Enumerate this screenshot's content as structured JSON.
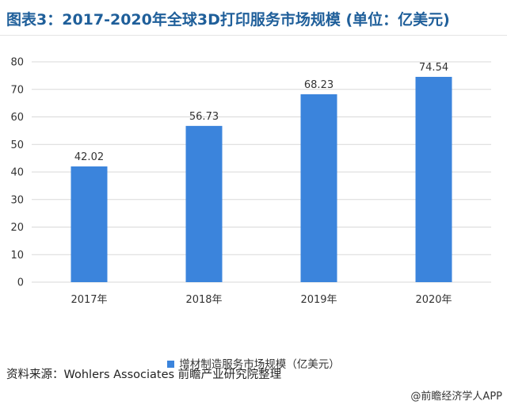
{
  "header": {
    "title": "图表3：2017-2020年全球3D打印服务市场规模 (单位：亿美元)"
  },
  "chart_data": {
    "type": "bar",
    "categories": [
      "2017年",
      "2018年",
      "2019年",
      "2020年"
    ],
    "series": [
      {
        "name": "增材制造服务市场规模（亿美元）",
        "values": [
          42.02,
          56.73,
          68.23,
          74.54
        ],
        "color": "#3b84dc"
      }
    ],
    "value_labels": [
      "42.02",
      "56.73",
      "68.23",
      "74.54"
    ],
    "ylim": [
      0,
      80
    ],
    "yticks": [
      0,
      10,
      20,
      30,
      40,
      50,
      60,
      70,
      80
    ],
    "grid": true,
    "legend_position": "bottom"
  },
  "footer": {
    "source": "资料来源：Wohlers Associates 前瞻产业研究院整理",
    "brand": "@前瞻经济学人APP"
  }
}
